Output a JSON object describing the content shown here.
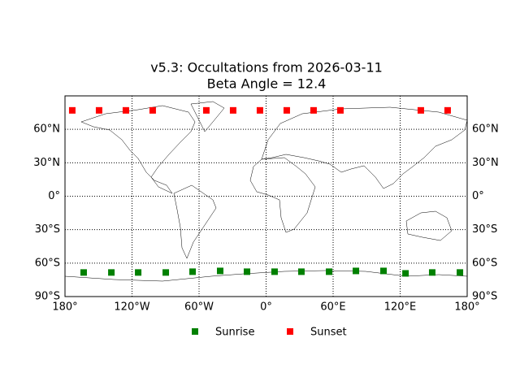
{
  "chart_data": {
    "type": "scatter",
    "title": "v5.3: Occultations from 2026-03-11",
    "subtitle": "Beta Angle = 12.4",
    "xlim": [
      -180,
      180
    ],
    "ylim": [
      -90,
      90
    ],
    "xticks": [
      {
        "value": -180,
        "label": "180°"
      },
      {
        "value": -120,
        "label": "120°W"
      },
      {
        "value": -60,
        "label": "60°W"
      },
      {
        "value": 0,
        "label": "0°"
      },
      {
        "value": 60,
        "label": "60°E"
      },
      {
        "value": 120,
        "label": "120°E"
      },
      {
        "value": 180,
        "label": "180°"
      }
    ],
    "yticks": [
      {
        "value": -90,
        "label": "90°S"
      },
      {
        "value": -60,
        "label": "60°S"
      },
      {
        "value": -30,
        "label": "30°S"
      },
      {
        "value": 0,
        "label": "0°"
      },
      {
        "value": 30,
        "label": "30°N"
      },
      {
        "value": 60,
        "label": "60°N"
      }
    ],
    "grid": true,
    "legend": "bottom",
    "series": [
      {
        "name": "Sunrise",
        "color": "#008000",
        "x": [
          -163.3,
          -138.5,
          -114.5,
          -89.8,
          -65.8,
          -41.1,
          -17.1,
          7.6,
          31.6,
          56.4,
          80.4,
          105.1,
          124.8,
          148.7,
          173.5
        ],
        "y": [
          -68.4,
          -68.4,
          -68.4,
          -68.4,
          -67.7,
          -67.0,
          -67.7,
          -67.7,
          -67.7,
          -67.7,
          -67.0,
          -67.0,
          -69.2,
          -68.4,
          -68.4
        ]
      },
      {
        "name": "Sunset",
        "color": "#ff0000",
        "x": [
          -173.5,
          -149.5,
          -125.5,
          -101.5,
          -53.5,
          -29.5,
          -5.5,
          18.5,
          42.5,
          66.5,
          138.5,
          162.5
        ],
        "y": [
          77,
          77,
          77,
          77,
          77,
          77,
          77,
          77,
          77,
          77,
          77,
          77
        ]
      }
    ]
  }
}
